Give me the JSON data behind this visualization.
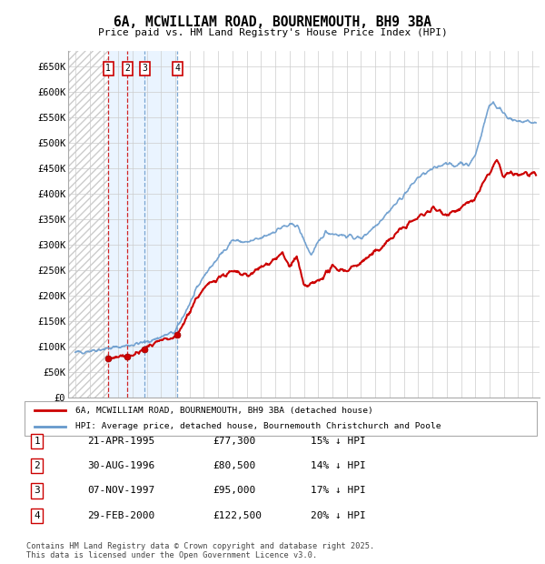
{
  "title": "6A, MCWILLIAM ROAD, BOURNEMOUTH, BH9 3BA",
  "subtitle": "Price paid vs. HM Land Registry's House Price Index (HPI)",
  "price_paid": [
    [
      1995.31,
      77300
    ],
    [
      1996.66,
      80500
    ],
    [
      1997.85,
      95000
    ],
    [
      2000.16,
      122500
    ]
  ],
  "sale_labels": [
    "1",
    "2",
    "3",
    "4"
  ],
  "sale_dates": [
    "21-APR-1995",
    "30-AUG-1996",
    "07-NOV-1997",
    "29-FEB-2000"
  ],
  "sale_prices": [
    "£77,300",
    "£80,500",
    "£95,000",
    "£122,500"
  ],
  "sale_hpi_diff": [
    "15% ↓ HPI",
    "14% ↓ HPI",
    "17% ↓ HPI",
    "20% ↓ HPI"
  ],
  "hpi_color": "#6699cc",
  "price_color": "#cc0000",
  "ylim": [
    0,
    680000
  ],
  "yticks": [
    0,
    50000,
    100000,
    150000,
    200000,
    250000,
    300000,
    350000,
    400000,
    450000,
    500000,
    550000,
    600000,
    650000
  ],
  "xlim": [
    1992.5,
    2025.5
  ],
  "xticks": [
    1993,
    1994,
    1995,
    1996,
    1997,
    1998,
    1999,
    2000,
    2001,
    2002,
    2003,
    2004,
    2005,
    2006,
    2007,
    2008,
    2009,
    2010,
    2011,
    2012,
    2013,
    2014,
    2015,
    2016,
    2017,
    2018,
    2019,
    2020,
    2021,
    2022,
    2023,
    2024,
    2025
  ],
  "legend_line1": "6A, MCWILLIAM ROAD, BOURNEMOUTH, BH9 3BA (detached house)",
  "legend_line2": "HPI: Average price, detached house, Bournemouth Christchurch and Poole",
  "footnote": "Contains HM Land Registry data © Crown copyright and database right 2025.\nThis data is licensed under the Open Government Licence v3.0.",
  "hatch_end": 1995.31,
  "shade_start": 1995.31,
  "shade_end": 2000.16,
  "vline_colors": [
    "#dd3333",
    "#dd3333",
    "#aabbdd",
    "#aabbdd"
  ]
}
